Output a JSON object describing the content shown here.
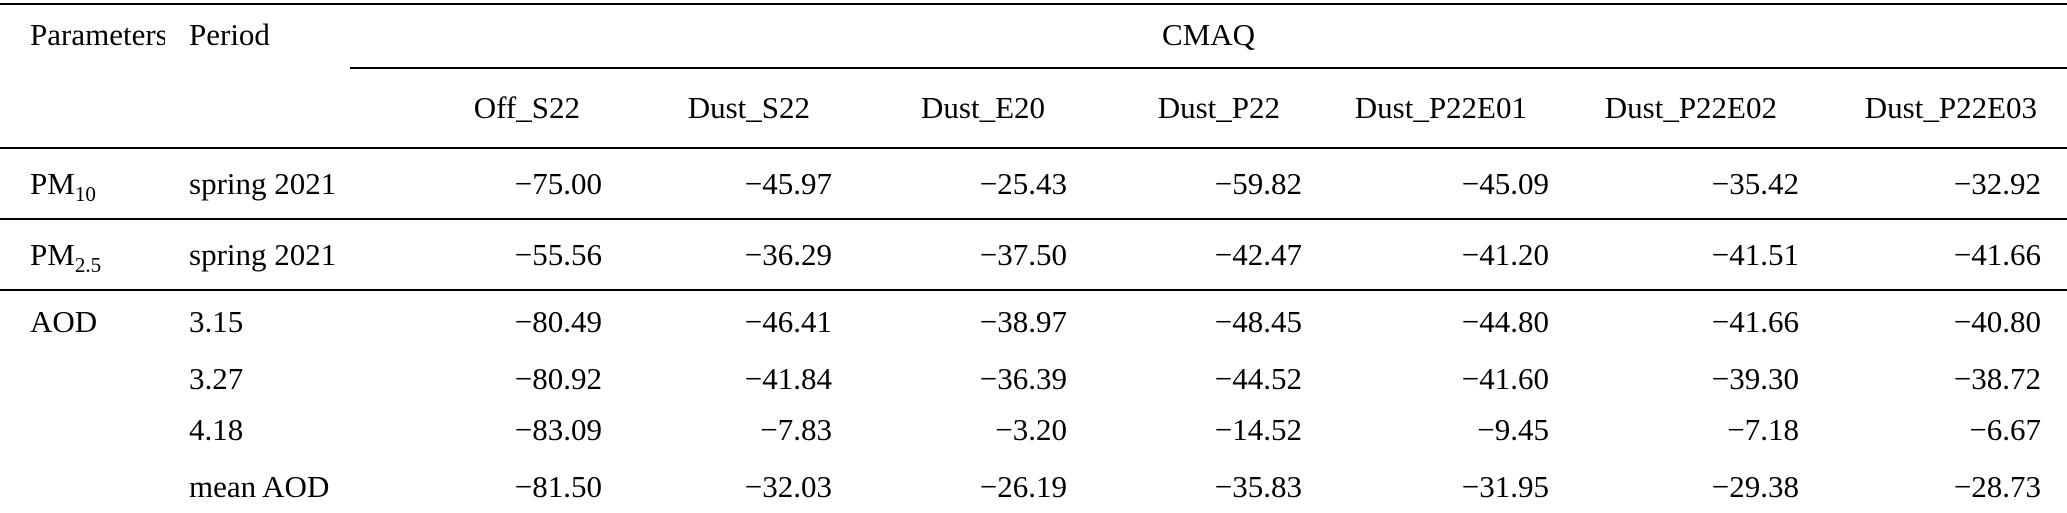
{
  "table": {
    "columns": {
      "parameters": "Parameters",
      "period": "Period",
      "group": "CMAQ",
      "scenarios": [
        "Off_S22",
        "Dust_S22",
        "Dust_E20",
        "Dust_P22",
        "Dust_P22E01",
        "Dust_P22E02",
        "Dust_P22E03"
      ]
    },
    "sections": [
      {
        "param_base": "PM",
        "param_sub": "10",
        "rows": [
          {
            "period": "spring 2021",
            "values": [
              "−75.00",
              "−45.97",
              "−25.43",
              "−59.82",
              "−45.09",
              "−35.42",
              "−32.92"
            ]
          }
        ]
      },
      {
        "param_base": "PM",
        "param_sub": "2.5",
        "rows": [
          {
            "period": "spring 2021",
            "values": [
              "−55.56",
              "−36.29",
              "−37.50",
              "−42.47",
              "−41.20",
              "−41.51",
              "−41.66"
            ]
          }
        ]
      },
      {
        "param_base": "AOD",
        "param_sub": "",
        "rows": [
          {
            "period": "3.15",
            "values": [
              "−80.49",
              "−46.41",
              "−38.97",
              "−48.45",
              "−44.80",
              "−41.66",
              "−40.80"
            ]
          },
          {
            "period": "3.27",
            "values": [
              "−80.92",
              "−41.84",
              "−36.39",
              "−44.52",
              "−41.60",
              "−39.30",
              "−38.72"
            ]
          },
          {
            "period": "4.18",
            "values": [
              "−83.09",
              "−7.83",
              "−3.20",
              "−14.52",
              "−9.45",
              "−7.18",
              "−6.67"
            ]
          },
          {
            "period": "mean AOD",
            "values": [
              "−81.50",
              "−32.03",
              "−26.19",
              "−35.83",
              "−31.95",
              "−29.38",
              "−28.73"
            ]
          }
        ]
      }
    ]
  }
}
